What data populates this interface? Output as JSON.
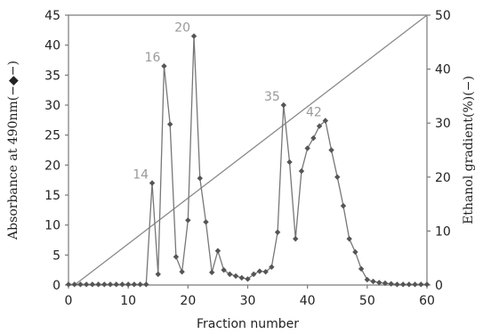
{
  "chart_data": {
    "type": "line",
    "xlabel": "Fraction number",
    "ylabel": "Absorbance at 490nm(−◆−)",
    "y2label": "Ethanol gradient(%)(−)",
    "xlim": [
      0,
      60
    ],
    "ylim": [
      0,
      45
    ],
    "y2lim": [
      0,
      50
    ],
    "xticks": [
      "0",
      "10",
      "20",
      "30",
      "40",
      "50",
      "60"
    ],
    "yticks": [
      "0",
      "5",
      "10",
      "15",
      "20",
      "25",
      "30",
      "35",
      "40",
      "45"
    ],
    "y2ticks": [
      "0",
      "10",
      "20",
      "30",
      "40",
      "50"
    ],
    "grid": false,
    "series": [
      {
        "axis": "left",
        "marker": "diamond",
        "color": "#555555",
        "x": [
          0,
          1,
          2,
          3,
          4,
          5,
          6,
          7,
          8,
          9,
          10,
          11,
          12,
          13,
          14,
          15,
          16,
          17,
          18,
          19,
          20,
          21,
          22,
          23,
          24,
          25,
          26,
          27,
          28,
          29,
          30,
          31,
          32,
          33,
          34,
          35,
          36,
          37,
          38,
          39,
          40,
          41,
          42,
          43,
          44,
          45,
          46,
          47,
          48,
          49,
          50,
          51,
          52,
          53,
          54,
          55,
          56,
          57,
          58,
          59,
          60
        ],
        "y": [
          0.1,
          0.1,
          0.1,
          0.1,
          0.1,
          0.1,
          0.1,
          0.1,
          0.1,
          0.1,
          0.1,
          0.1,
          0.1,
          0.1,
          17,
          1.8,
          36.5,
          26.8,
          4.7,
          2.2,
          10.8,
          41.5,
          17.8,
          10.5,
          2.1,
          5.7,
          2.5,
          1.8,
          1.5,
          1.2,
          1.0,
          1.8,
          2.3,
          2.2,
          3.0,
          8.8,
          30,
          20.5,
          7.7,
          19,
          22.8,
          24.5,
          26.5,
          27.4,
          22.5,
          18,
          13.2,
          7.7,
          5.5,
          2.7,
          0.9,
          0.6,
          0.4,
          0.3,
          0.2,
          0.1,
          0.1,
          0.1,
          0.1,
          0.1,
          0.1
        ]
      },
      {
        "axis": "right",
        "marker": "none",
        "color": "#8a8a8a",
        "x": [
          1,
          60
        ],
        "y": [
          0,
          50
        ]
      }
    ],
    "annotations": [
      {
        "text": "14",
        "x": 14,
        "y": 17
      },
      {
        "text": "16",
        "x": 16,
        "y": 36.5
      },
      {
        "text": "20",
        "x": 21,
        "y": 41.5
      },
      {
        "text": "35",
        "x": 36,
        "y": 30
      },
      {
        "text": "42",
        "x": 43,
        "y": 27.4
      }
    ]
  }
}
